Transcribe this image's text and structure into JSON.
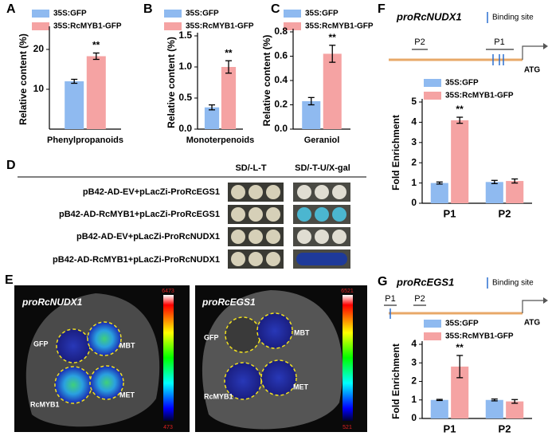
{
  "chart_data": [
    {
      "type": "bar",
      "panel": "A",
      "ylabel": "Relative content (%)",
      "categories": [
        "Phenylpropanoids"
      ],
      "series": [
        {
          "name": "35S:GFP",
          "color": "#8fbaf0",
          "values": [
            12
          ],
          "errors": [
            0.5
          ]
        },
        {
          "name": "35S:RcMYB1-GFP",
          "color": "#f5a3a3",
          "values": [
            18.3
          ],
          "errors": [
            0.8
          ]
        }
      ],
      "significance": [
        "**"
      ],
      "ylim": [
        0,
        25
      ],
      "yticks": [
        10,
        20
      ]
    },
    {
      "type": "bar",
      "panel": "B",
      "ylabel": "Relative content (%)",
      "categories": [
        "Monoterpenoids"
      ],
      "series": [
        {
          "name": "35S:GFP",
          "color": "#8fbaf0",
          "values": [
            0.35
          ],
          "errors": [
            0.04
          ]
        },
        {
          "name": "35S:RcMYB1-GFP",
          "color": "#f5a3a3",
          "values": [
            1.0
          ],
          "errors": [
            0.1
          ]
        }
      ],
      "significance": [
        "**"
      ],
      "ylim": [
        0,
        1.5
      ],
      "yticks": [
        {
          "value": 0,
          "label": "0.0"
        },
        {
          "value": 0.5,
          "label": "0.5"
        },
        {
          "value": 1,
          "label": "1.0"
        },
        {
          "value": 1.5,
          "label": "1.5"
        }
      ]
    },
    {
      "type": "bar",
      "panel": "C",
      "ylabel": "Relative content (%)",
      "categories": [
        "Geraniol"
      ],
      "series": [
        {
          "name": "35S:GFP",
          "color": "#8fbaf0",
          "values": [
            0.23
          ],
          "errors": [
            0.03
          ]
        },
        {
          "name": "35S:RcMYB1-GFP",
          "color": "#f5a3a3",
          "values": [
            0.62
          ],
          "errors": [
            0.07
          ]
        }
      ],
      "significance": [
        "**"
      ],
      "ylim": [
        0,
        0.8
      ],
      "yticks": [
        {
          "value": 0,
          "label": "0.0"
        },
        {
          "value": 0.2,
          "label": "0.2"
        },
        {
          "value": 0.4,
          "label": "0.4"
        },
        {
          "value": 0.6,
          "label": "0.6"
        },
        {
          "value": 0.8,
          "label": "0.8"
        }
      ]
    },
    {
      "type": "bar",
      "ylabel": "Fold Enrichment",
      "categories": [
        "P1",
        "P2"
      ],
      "series": [
        {
          "name": "35S:GFP",
          "color": "#8fbaf0",
          "values": [
            1.0,
            1.05
          ],
          "errors": [
            0.05,
            0.08
          ]
        },
        {
          "name": "35S:RcMYB1-GFP",
          "color": "#f5a3a3",
          "values": [
            4.1,
            1.1
          ],
          "errors": [
            0.15,
            0.1
          ]
        }
      ],
      "significance": [
        "**",
        null
      ],
      "ylim": [
        0,
        5
      ],
      "yticks": [
        0,
        1,
        2,
        3,
        4,
        5
      ]
    },
    {
      "type": "bar",
      "ylabel": "Fold Enrichment",
      "categories": [
        "P1",
        "P2"
      ],
      "series": [
        {
          "name": "35S:GFP",
          "color": "#8fbaf0",
          "values": [
            1.0,
            1.0
          ],
          "errors": [
            0.03,
            0.05
          ]
        },
        {
          "name": "35S:RcMYB1-GFP",
          "color": "#f5a3a3",
          "values": [
            2.8,
            0.92
          ],
          "errors": [
            0.6,
            0.1
          ]
        }
      ],
      "significance": [
        "**",
        null
      ],
      "ylim": [
        0,
        4
      ],
      "yticks": [
        0,
        1,
        2,
        3,
        4
      ]
    }
  ],
  "panel_d": {
    "label": "D",
    "columns": [
      "SD/-L-T",
      "SD/-T-U/X-gal"
    ],
    "rows": [
      "pB42-AD-EV+pLacZi-ProRcEGS1",
      "pB42-AD-RcMYB1+pLacZi-ProRcEGS1",
      "pB42-AD-EV+pLacZi-ProRcNUDX1",
      "pB42-AD-RcMYB1+pLacZi-ProRcNUDX1"
    ]
  },
  "panel_e": {
    "label": "E",
    "images": [
      {
        "title": "proRcNUDX1",
        "spots": [
          "GFP",
          "MBT",
          "RcMYB1",
          "MET"
        ],
        "scale_max": 6473,
        "scale_min": 473
      },
      {
        "title": "proRcEGS1",
        "spots": [
          "GFP",
          "MBT",
          "RcMYB1",
          "MET"
        ],
        "scale_max": 6521,
        "scale_min": 521
      }
    ]
  },
  "panel_f": {
    "label": "F",
    "promoter": "proRcNUDX1",
    "legend": "Binding site",
    "primers": [
      "P2",
      "P1"
    ],
    "start": "ATG"
  },
  "panel_g": {
    "label": "G",
    "promoter": "proRcEGS1",
    "legend": "Binding site",
    "primers": [
      "P1",
      "P2"
    ],
    "start": "ATG"
  }
}
